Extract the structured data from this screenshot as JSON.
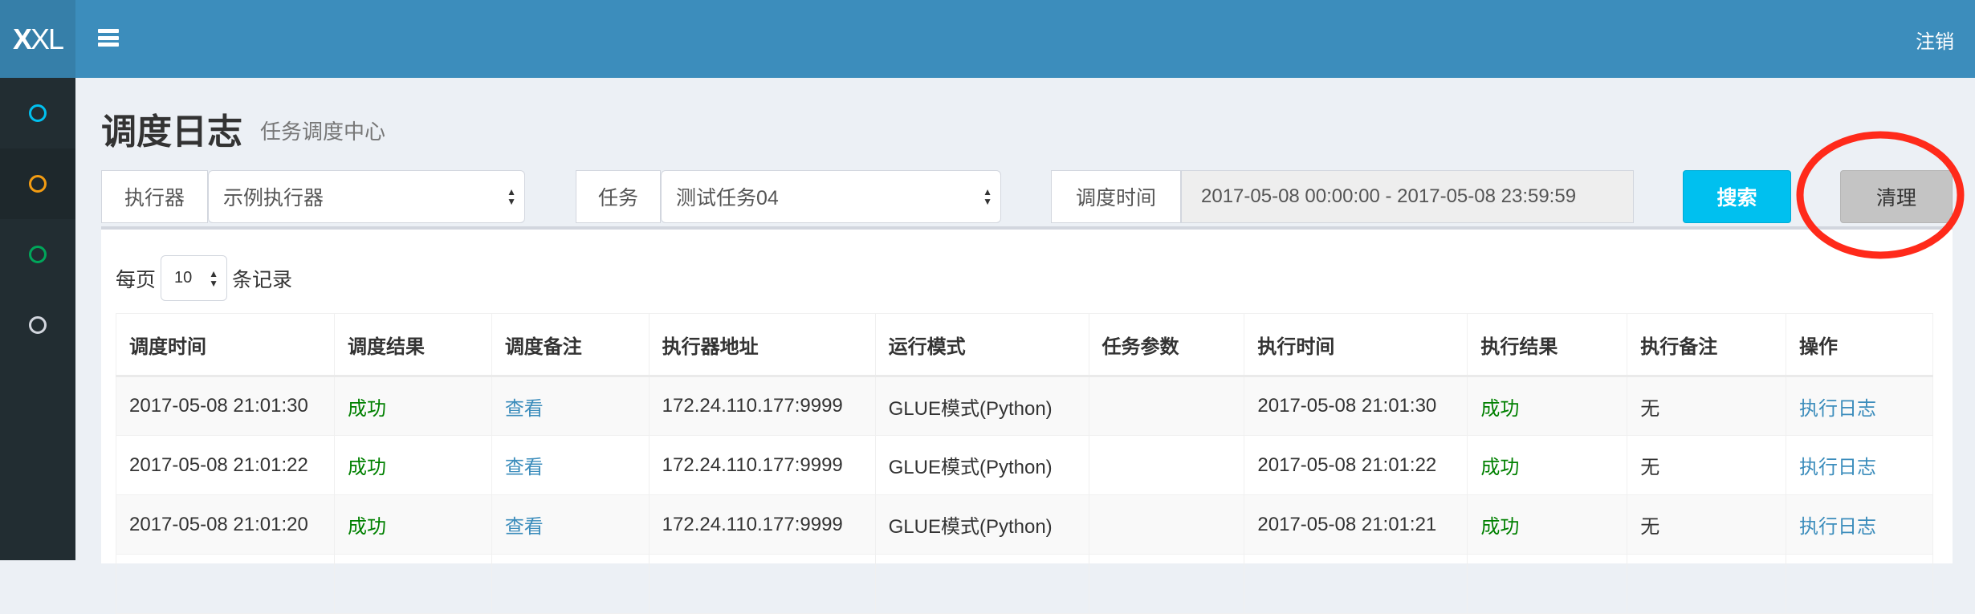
{
  "header": {
    "logo": "XXL",
    "logout": "注销"
  },
  "sidebar": {
    "items": [
      {
        "icon": "circle-icon",
        "color": "#00c0ef"
      },
      {
        "icon": "circle-icon",
        "color": "#f39c12",
        "active": true
      },
      {
        "icon": "circle-icon",
        "color": "#00a65a"
      },
      {
        "icon": "circle-icon",
        "color": "#d2d6de"
      }
    ]
  },
  "page": {
    "title": "调度日志",
    "subtitle": "任务调度中心"
  },
  "filters": {
    "executor": {
      "label": "执行器",
      "value": "示例执行器"
    },
    "task": {
      "label": "任务",
      "value": "测试任务04"
    },
    "time": {
      "label": "调度时间",
      "value": "2017-05-08 00:00:00 - 2017-05-08 23:59:59"
    },
    "search_label": "搜索",
    "clean_label": "清理"
  },
  "annotation": {
    "color": "#ff2a1a"
  },
  "pagination": {
    "prefix": "每页",
    "page_size": "10",
    "suffix": "条记录"
  },
  "table": {
    "columns": [
      "调度时间",
      "调度结果",
      "调度备注",
      "执行器地址",
      "运行模式",
      "任务参数",
      "执行时间",
      "执行结果",
      "执行备注",
      "操作"
    ],
    "rows": [
      [
        "2017-05-08 21:01:30",
        "成功",
        "查看",
        "172.24.110.177:9999",
        "GLUE模式(Python)",
        "",
        "2017-05-08 21:01:30",
        "成功",
        "无",
        "执行日志"
      ],
      [
        "2017-05-08 21:01:22",
        "成功",
        "查看",
        "172.24.110.177:9999",
        "GLUE模式(Python)",
        "",
        "2017-05-08 21:01:22",
        "成功",
        "无",
        "执行日志"
      ],
      [
        "2017-05-08 21:01:20",
        "成功",
        "查看",
        "172.24.110.177:9999",
        "GLUE模式(Python)",
        "",
        "2017-05-08 21:01:21",
        "成功",
        "无",
        "执行日志"
      ],
      [
        "",
        "",
        "",
        "",
        "",
        "",
        "",
        "",
        "",
        ""
      ]
    ]
  },
  "colors": {
    "header": "#3c8dbc",
    "sidebar": "#222d32",
    "success": "#008000",
    "link": "#3c8dbc",
    "search_button": "#00c0ef"
  }
}
